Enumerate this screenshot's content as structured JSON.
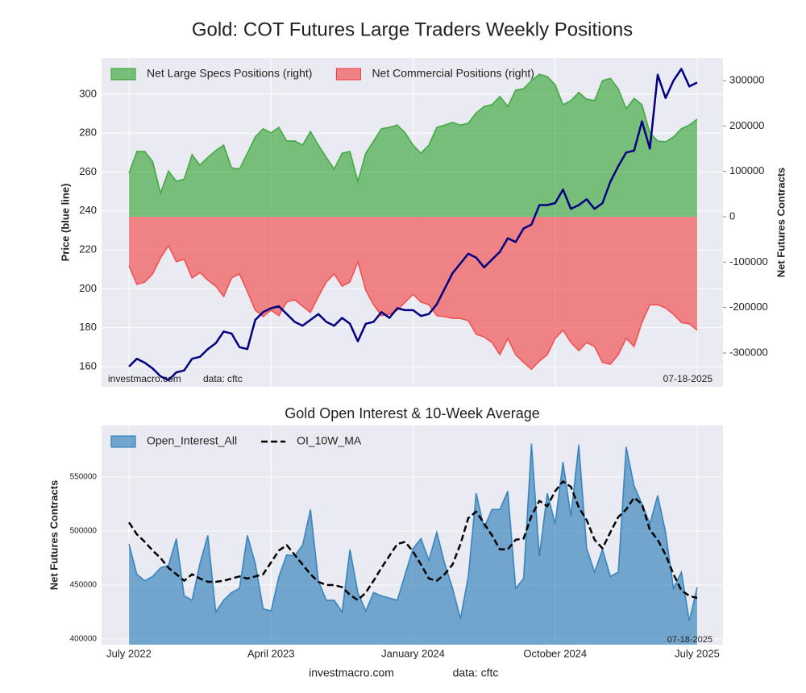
{
  "chart_data": [
    {
      "type": "line",
      "title": "Gold: COT Futures Large Traders Weekly Positions",
      "ylabel": "Price (blue line)",
      "y2label": "Net Futures Contracts",
      "ylim": [
        149.6,
        318.6
      ],
      "yticks": [
        160,
        180,
        200,
        220,
        240,
        260,
        280,
        300
      ],
      "y2lim": [
        -374600,
        349700
      ],
      "y2ticks": [
        -300000,
        -200000,
        -100000,
        0,
        100000,
        200000,
        300000
      ],
      "grid": true,
      "legend": "upper left",
      "annotations": [
        "investmacro.com",
        "data: cftc",
        "07-18-2025"
      ],
      "series": [
        {
          "name": "Net Large Specs Positions (right)",
          "type": "area",
          "axis": "y2",
          "color": "#2ca02c",
          "values": [
            96000,
            144000,
            144000,
            122000,
            52000,
            101000,
            78000,
            83000,
            137000,
            114000,
            131000,
            146000,
            158000,
            108000,
            105000,
            140000,
            176000,
            194000,
            185000,
            197000,
            167000,
            167000,
            158000,
            188000,
            158000,
            131000,
            105000,
            140000,
            144000,
            78000,
            140000,
            167000,
            194000,
            197000,
            202000,
            185000,
            158000,
            140000,
            158000,
            197000,
            202000,
            208000,
            202000,
            206000,
            229000,
            243000,
            247000,
            265000,
            243000,
            279000,
            282000,
            300000,
            314000,
            309000,
            291000,
            247000,
            256000,
            274000,
            259000,
            256000,
            300000,
            305000,
            282000,
            238000,
            261000,
            247000,
            185000,
            167000,
            165000,
            176000,
            194000,
            202000,
            215000
          ]
        },
        {
          "name": "Net Commercial Positions (right)",
          "type": "area",
          "axis": "y2",
          "color": "#f03c3c",
          "values": [
            -108000,
            -149000,
            -144000,
            -126000,
            -91000,
            -64000,
            -99000,
            -94000,
            -135000,
            -123000,
            -140000,
            -153000,
            -176000,
            -135000,
            -126000,
            -165000,
            -206000,
            -220000,
            -206000,
            -218000,
            -188000,
            -183000,
            -197000,
            -211000,
            -176000,
            -144000,
            -126000,
            -153000,
            -144000,
            -99000,
            -162000,
            -194000,
            -218000,
            -215000,
            -206000,
            -188000,
            -171000,
            -188000,
            -194000,
            -218000,
            -220000,
            -224000,
            -224000,
            -229000,
            -259000,
            -265000,
            -277000,
            -304000,
            -268000,
            -304000,
            -321000,
            -336000,
            -318000,
            -304000,
            -268000,
            -250000,
            -277000,
            -295000,
            -277000,
            -286000,
            -321000,
            -325000,
            -304000,
            -268000,
            -286000,
            -233000,
            -194000,
            -194000,
            -201000,
            -215000,
            -233000,
            -236000,
            -250000
          ]
        },
        {
          "type": "line",
          "color": "#000080",
          "values": [
            160,
            164,
            162,
            159,
            155,
            153,
            157,
            158,
            164,
            165,
            169,
            172,
            178,
            177,
            170,
            169,
            184,
            188,
            190,
            191,
            187,
            183,
            181,
            184,
            187,
            183,
            181,
            185,
            182,
            173,
            182,
            183,
            188,
            185,
            190,
            189,
            189,
            186,
            187,
            192,
            200,
            208,
            213,
            218,
            216,
            211,
            215,
            219,
            226,
            224,
            231,
            233,
            243,
            243,
            244,
            251,
            241,
            243,
            246,
            241,
            244,
            255,
            263,
            270,
            271,
            286,
            272,
            310,
            298,
            307,
            313,
            304,
            306
          ]
        }
      ]
    },
    {
      "type": "area",
      "title": "Gold Open Interest & 10-Week Average",
      "ylabel": "Net Futures Contracts",
      "categories": [
        "July 2022",
        null,
        null,
        null,
        null,
        null,
        null,
        null,
        null,
        null,
        null,
        null,
        null,
        null,
        null,
        null,
        null,
        null,
        "April 2023",
        null,
        null,
        null,
        null,
        null,
        null,
        null,
        null,
        null,
        null,
        null,
        null,
        null,
        null,
        null,
        null,
        null,
        "January 2024",
        null,
        null,
        null,
        null,
        null,
        null,
        null,
        null,
        null,
        null,
        null,
        null,
        null,
        null,
        null,
        null,
        null,
        "October 2024",
        null,
        null,
        null,
        null,
        null,
        null,
        null,
        null,
        null,
        null,
        null,
        null,
        null,
        null,
        null,
        null,
        null,
        "July 2025"
      ],
      "ylim": [
        394800,
        597800
      ],
      "yticks": [
        400000,
        450000,
        500000,
        550000
      ],
      "grid": true,
      "legend": "upper left",
      "annotations": [
        "07-18-2025"
      ],
      "series": [
        {
          "name": "Open_Interest_All",
          "type": "area",
          "color": "#1f77b4",
          "values": [
            488000,
            460000,
            454000,
            458000,
            466000,
            468000,
            493000,
            440000,
            436000,
            470000,
            496000,
            425000,
            436000,
            443000,
            447000,
            496000,
            470000,
            428000,
            426000,
            458000,
            478000,
            477000,
            487000,
            520000,
            454000,
            436000,
            436000,
            425000,
            483000,
            443000,
            426000,
            443000,
            440000,
            438000,
            436000,
            460000,
            484000,
            493000,
            473000,
            499000,
            470000,
            447000,
            419000,
            458000,
            535000,
            503000,
            520000,
            520000,
            537000,
            447000,
            456000,
            581000,
            477000,
            535000,
            507000,
            564000,
            514000,
            580000,
            484000,
            462000,
            483000,
            458000,
            462000,
            578000,
            542000,
            525000,
            507000,
            533000,
            499000,
            447000,
            462000,
            417000,
            448000
          ]
        },
        {
          "name": "OI_10W_MA",
          "type": "line",
          "dash": true,
          "color": "#000000",
          "values": [
            508000,
            497000,
            490000,
            482000,
            475000,
            466000,
            460000,
            454000,
            460000,
            456000,
            453000,
            453000,
            454000,
            456000,
            458000,
            456000,
            458000,
            460000,
            471000,
            482000,
            487000,
            478000,
            469000,
            460000,
            453000,
            450000,
            450000,
            448000,
            441000,
            436000,
            443000,
            454000,
            466000,
            477000,
            488000,
            490000,
            481000,
            469000,
            456000,
            454000,
            460000,
            469000,
            488000,
            512000,
            518000,
            507000,
            496000,
            483000,
            483000,
            492000,
            493000,
            514000,
            528000,
            523000,
            537000,
            546000,
            541000,
            522000,
            510000,
            492000,
            484000,
            499000,
            513000,
            520000,
            531000,
            525000,
            501000,
            492000,
            478000,
            460000,
            445000,
            440000,
            438000
          ]
        }
      ]
    }
  ],
  "footer": [
    "investmacro.com",
    "data: cftc"
  ]
}
